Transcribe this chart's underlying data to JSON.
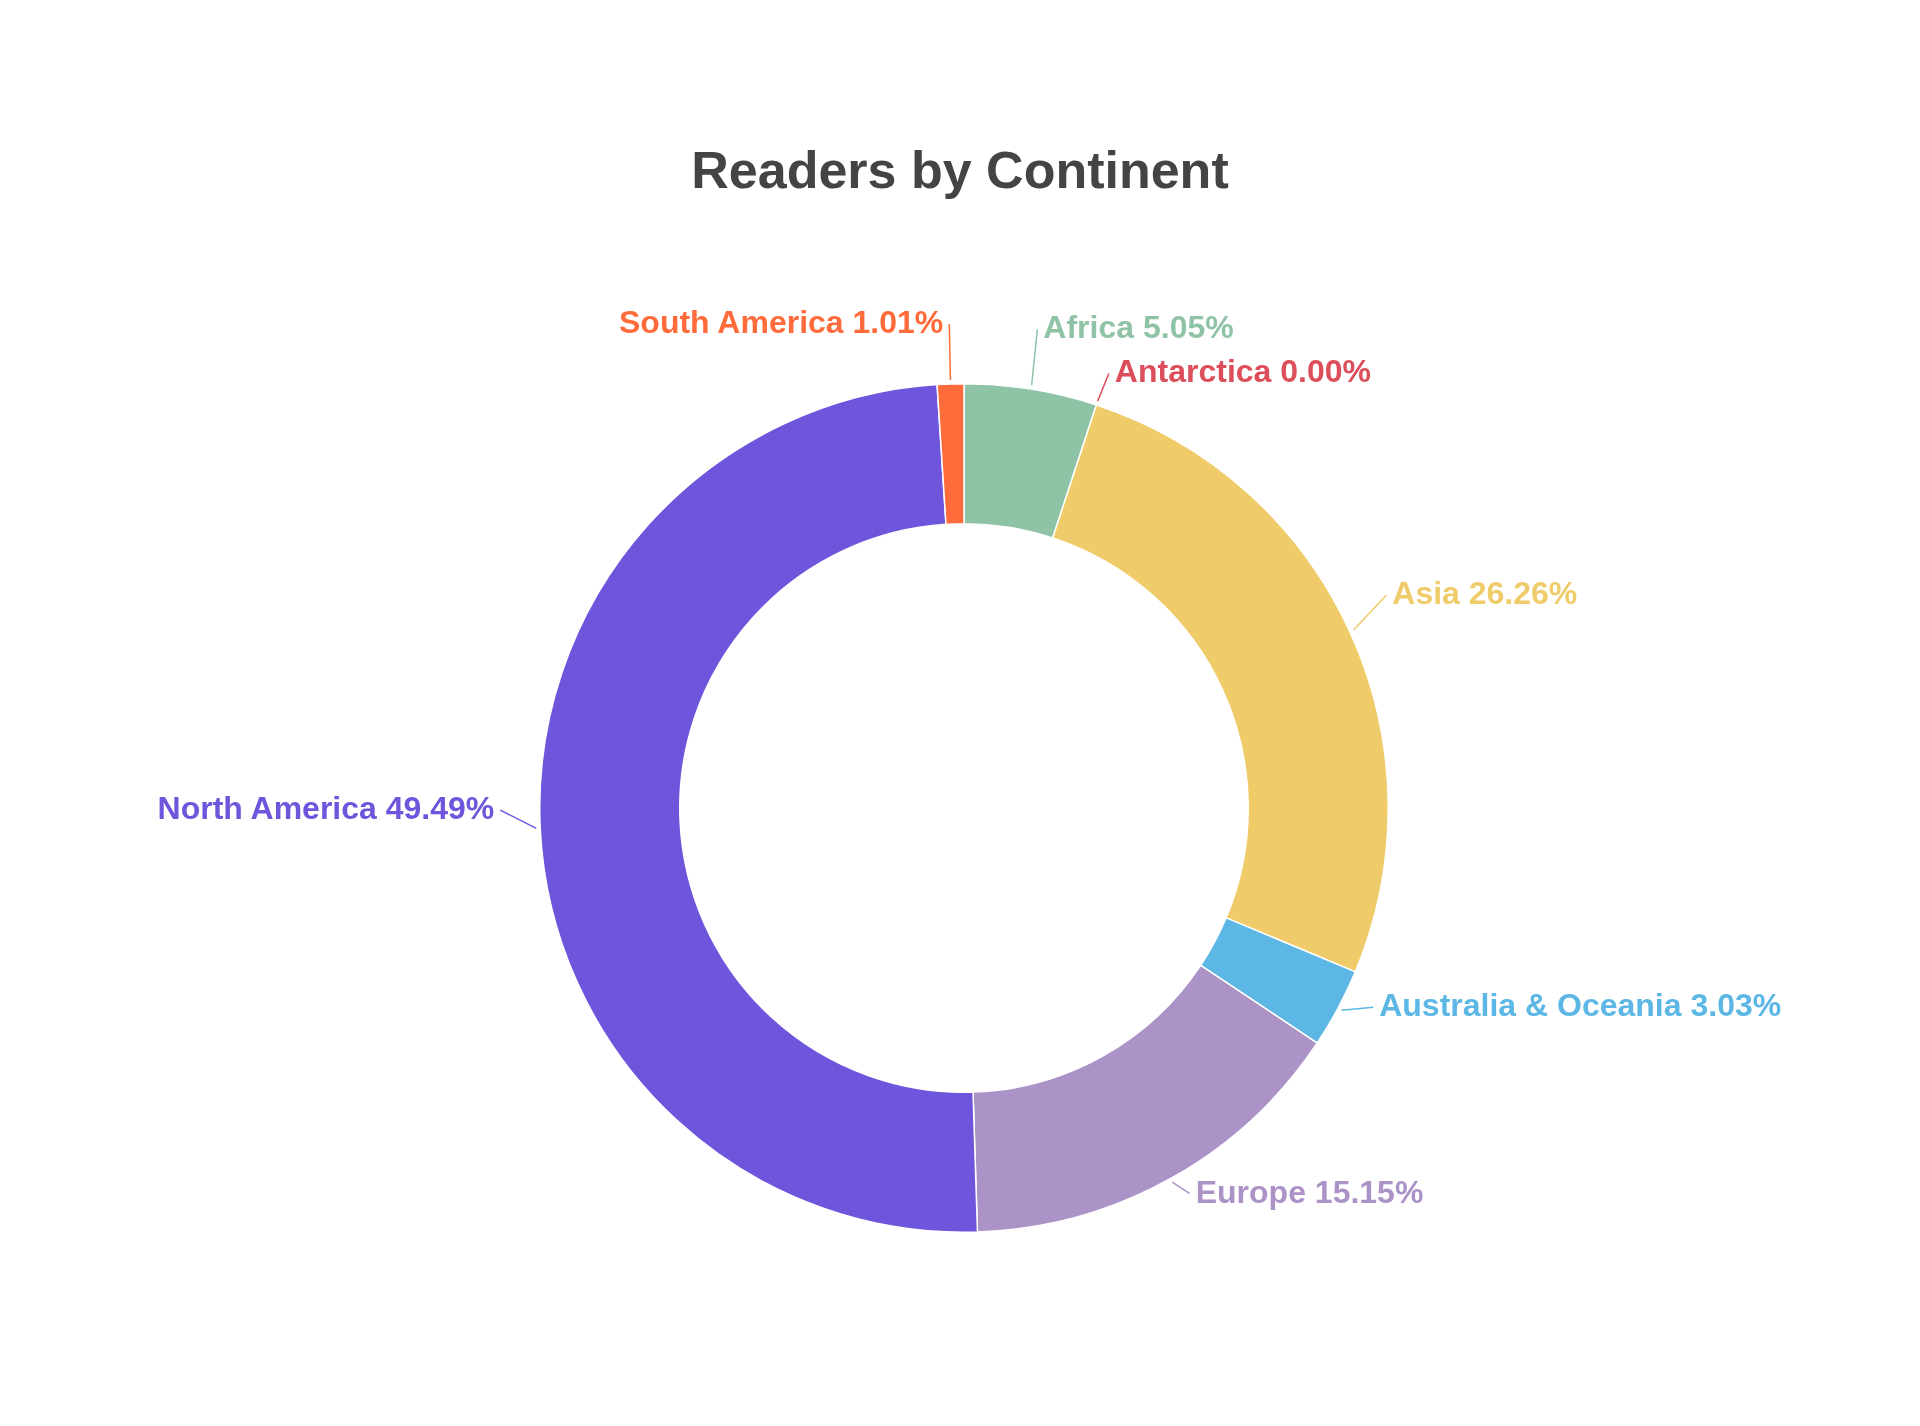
{
  "chart_data": {
    "type": "donut",
    "title": "Readers by Continent",
    "categories": [
      "Africa",
      "Antarctica",
      "Asia",
      "Australia & Oceania",
      "Europe",
      "North America",
      "South America"
    ],
    "values": [
      5.05,
      0.0,
      26.26,
      3.03,
      15.15,
      49.49,
      1.01
    ],
    "value_labels": [
      "5.05%",
      "0.00%",
      "26.26%",
      "3.03%",
      "15.15%",
      "49.49%",
      "1.01%"
    ],
    "colors": [
      "#8fc3a6",
      "#dc4e5a",
      "#efcb6a",
      "#5db7e4",
      "#ab92c7",
      "#6e55dc",
      "#ff6b3a"
    ]
  }
}
